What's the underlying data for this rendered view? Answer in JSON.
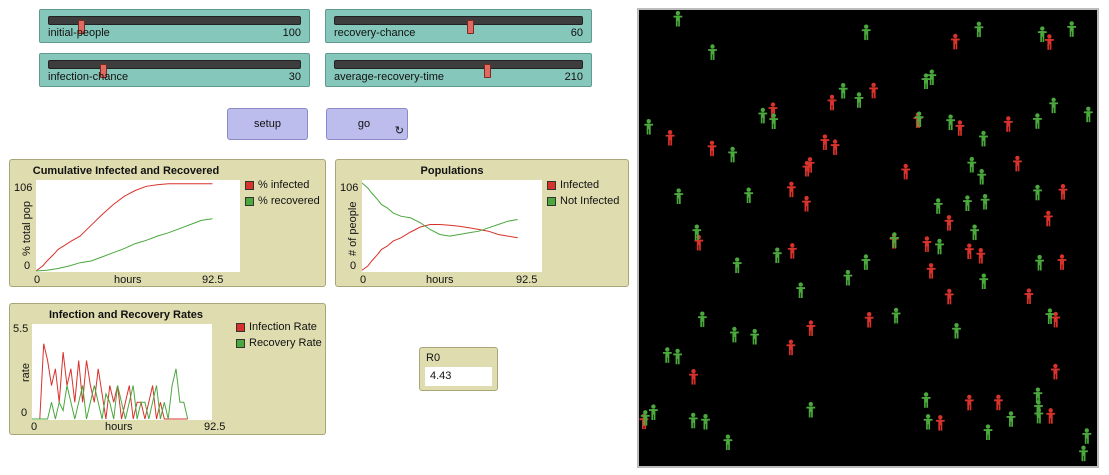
{
  "sliders": [
    {
      "id": "initial-people",
      "label": "initial-people",
      "value": "100",
      "frac": 0.13
    },
    {
      "id": "recovery-chance",
      "label": "recovery-chance",
      "value": "60",
      "frac": 0.55
    },
    {
      "id": "infection-chance",
      "label": "infection-chance",
      "value": "30",
      "frac": 0.22
    },
    {
      "id": "average-recovery-time",
      "label": "average-recovery-time",
      "value": "210",
      "frac": 0.62
    }
  ],
  "buttons": {
    "setup": "setup",
    "go": "go",
    "go_forever_icon": "↻"
  },
  "plots": {
    "cumulative": {
      "title": "Cumulative Infected and Recovered",
      "ylabel": "% total pop",
      "xlabel": "hours",
      "ymax": "106",
      "ymin": "0",
      "xmin": "0",
      "xmax": "92.5",
      "legend": [
        {
          "name": "% infected",
          "color": "#d8322c"
        },
        {
          "name": "% recovered",
          "color": "#4aa83d"
        }
      ]
    },
    "populations": {
      "title": "Populations",
      "ylabel": "# of people",
      "xlabel": "hours",
      "ymax": "106",
      "ymin": "0",
      "xmin": "0",
      "xmax": "92.5",
      "legend": [
        {
          "name": "Infected",
          "color": "#d8322c"
        },
        {
          "name": "Not Infected",
          "color": "#4aa83d"
        }
      ]
    },
    "rates": {
      "title": "Infection and Recovery Rates",
      "ylabel": "rate",
      "xlabel": "hours",
      "ymax": "5.5",
      "ymin": "0",
      "xmin": "0",
      "xmax": "92.5",
      "legend": [
        {
          "name": "Infection Rate",
          "color": "#d8322c"
        },
        {
          "name": "Recovery Rate",
          "color": "#4aa83d"
        }
      ]
    }
  },
  "chart_data": [
    {
      "type": "line",
      "title": "Cumulative Infected and Recovered",
      "xlabel": "hours",
      "ylabel": "% total pop",
      "xlim": [
        0,
        92.5
      ],
      "ylim": [
        0,
        106
      ],
      "series": [
        {
          "name": "% infected",
          "color": "#d8322c",
          "x": [
            0,
            3,
            5,
            8,
            10,
            13,
            16,
            20,
            25,
            30,
            35,
            40,
            45,
            50,
            55,
            60,
            65,
            70,
            75,
            80
          ],
          "y": [
            0,
            6,
            12,
            20,
            26,
            31,
            36,
            42,
            55,
            68,
            80,
            90,
            97,
            102,
            104,
            105,
            105,
            105,
            105,
            105
          ]
        },
        {
          "name": "% recovered",
          "color": "#4aa83d",
          "x": [
            0,
            5,
            10,
            15,
            20,
            25,
            30,
            35,
            40,
            45,
            50,
            55,
            60,
            65,
            70,
            75,
            80
          ],
          "y": [
            0,
            1,
            3,
            6,
            10,
            12,
            17,
            22,
            27,
            33,
            37,
            42,
            46,
            51,
            56,
            61,
            63
          ]
        }
      ]
    },
    {
      "type": "line",
      "title": "Populations",
      "xlabel": "hours",
      "ylabel": "# of people",
      "xlim": [
        0,
        92.5
      ],
      "ylim": [
        0,
        106
      ],
      "series": [
        {
          "name": "Infected",
          "color": "#d8322c",
          "x": [
            0,
            3,
            5,
            8,
            10,
            13,
            16,
            20,
            25,
            30,
            35,
            40,
            45,
            50,
            55,
            60,
            65,
            70,
            75,
            80
          ],
          "y": [
            1,
            6,
            12,
            20,
            26,
            30,
            36,
            40,
            47,
            53,
            56,
            56,
            55,
            54,
            52,
            50,
            48,
            44,
            42,
            40
          ]
        },
        {
          "name": "Not Infected",
          "color": "#4aa83d",
          "x": [
            0,
            3,
            5,
            8,
            10,
            13,
            16,
            20,
            25,
            30,
            35,
            40,
            45,
            50,
            55,
            60,
            65,
            70,
            75,
            80
          ],
          "y": [
            106,
            100,
            94,
            86,
            80,
            76,
            70,
            66,
            64,
            58,
            50,
            44,
            42,
            44,
            46,
            48,
            52,
            56,
            60,
            62
          ]
        }
      ]
    },
    {
      "type": "line",
      "title": "Infection and Recovery Rates",
      "xlabel": "hours",
      "ylabel": "rate",
      "xlim": [
        0,
        92.5
      ],
      "ylim": [
        0,
        5.5
      ],
      "series": [
        {
          "name": "Infection Rate",
          "color": "#d8322c",
          "x": [
            0,
            4,
            6,
            8,
            10,
            12,
            14,
            16,
            18,
            20,
            22,
            24,
            26,
            28,
            30,
            32,
            34,
            36,
            38,
            40,
            42,
            44,
            46,
            48,
            50,
            52,
            54,
            56,
            58,
            60,
            62,
            64,
            66,
            68,
            70,
            72,
            74,
            76,
            78,
            80
          ],
          "y": [
            0,
            0,
            4.5,
            3.5,
            2,
            3,
            1,
            4,
            2,
            3,
            1,
            3.5,
            1,
            3.5,
            2,
            1,
            3,
            1.5,
            0,
            2,
            1,
            2,
            0,
            1,
            2,
            0,
            1,
            1,
            0,
            1,
            2,
            0,
            1,
            0,
            0,
            0,
            0,
            0,
            0,
            0
          ]
        },
        {
          "name": "Recovery Rate",
          "color": "#4aa83d",
          "x": [
            0,
            4,
            6,
            8,
            10,
            12,
            14,
            16,
            18,
            20,
            22,
            24,
            26,
            28,
            30,
            32,
            34,
            36,
            38,
            40,
            42,
            44,
            46,
            48,
            50,
            52,
            54,
            56,
            58,
            60,
            62,
            64,
            66,
            68,
            70,
            72,
            74,
            76,
            78,
            80
          ],
          "y": [
            0,
            0,
            0,
            0,
            1,
            0,
            1,
            0.5,
            2,
            1,
            0,
            1,
            2,
            0,
            1,
            2,
            1,
            0,
            1.5,
            1,
            0,
            2,
            1,
            0,
            1,
            2,
            0,
            1,
            1,
            0,
            1,
            2,
            0,
            1,
            0,
            2,
            3,
            1,
            1,
            0
          ]
        }
      ]
    }
  ],
  "monitor": {
    "label": "R0",
    "value": "4.43"
  },
  "world": {
    "background": "#000000",
    "infected_color": "#d8322c",
    "healthy_color": "#4aa83d",
    "infected_count": 42,
    "healthy_count": 62
  }
}
